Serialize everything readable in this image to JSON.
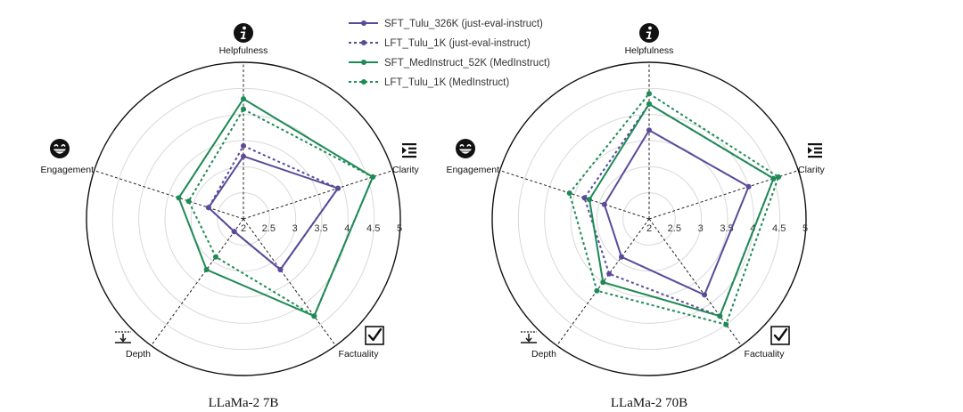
{
  "legend": [
    {
      "name": "SFT_Tulu_326K (just-eval-instruct)",
      "color": "#5b4a9a",
      "dash": "solid"
    },
    {
      "name": "LFT_Tulu_1K (just-eval-instruct)",
      "color": "#5b4a9a",
      "dash": "dotted"
    },
    {
      "name": "SFT_MedInstruct_52K (MedInstruct)",
      "color": "#1e8a55",
      "dash": "solid"
    },
    {
      "name": "LFT_Tulu_1K (MedInstruct)",
      "color": "#1e8a55",
      "dash": "dotted"
    }
  ],
  "icons": {
    "Helpfulness": "info-icon",
    "Clarity": "indent-list-icon",
    "Factuality": "checkbox-icon",
    "Depth": "depth-icon",
    "Engagement": "grin-face-icon"
  },
  "chart_data": [
    {
      "type": "radar",
      "title": "LLaMa-2 7B",
      "axes": [
        "Helpfulness",
        "Clarity",
        "Factuality",
        "Depth",
        "Engagement"
      ],
      "rlim": [
        2,
        5
      ],
      "ticks": [
        "2",
        "2.5",
        "3",
        "3.5",
        "4",
        "4.5",
        "5"
      ],
      "grid": true,
      "series": [
        {
          "name": "SFT_Tulu_326K (just-eval-instruct)",
          "values": [
            3.2,
            3.9,
            3.2,
            2.3,
            2.7
          ]
        },
        {
          "name": "LFT_Tulu_1K (just-eval-instruct)",
          "values": [
            3.4,
            3.9,
            3.2,
            2.3,
            2.7
          ]
        },
        {
          "name": "SFT_MedInstruct_52K (MedInstruct)",
          "values": [
            4.3,
            4.6,
            4.3,
            3.2,
            3.3
          ]
        },
        {
          "name": "LFT_Tulu_1K (MedInstruct)",
          "values": [
            4.1,
            4.6,
            4.3,
            2.9,
            3.1
          ]
        }
      ]
    },
    {
      "type": "radar",
      "title": "LLaMa-2 70B",
      "axes": [
        "Helpfulness",
        "Clarity",
        "Factuality",
        "Depth",
        "Engagement"
      ],
      "rlim": [
        2,
        5
      ],
      "ticks": [
        "2",
        "2.5",
        "3",
        "3.5",
        "4",
        "4.5",
        "5"
      ],
      "grid": true,
      "series": [
        {
          "name": "SFT_Tulu_326K (just-eval-instruct)",
          "values": [
            3.7,
            4.0,
            3.8,
            2.9,
            2.9
          ]
        },
        {
          "name": "LFT_Tulu_1K (just-eval-instruct)",
          "values": [
            4.2,
            4.5,
            4.3,
            3.3,
            3.3
          ]
        },
        {
          "name": "SFT_MedInstruct_52K (MedInstruct)",
          "values": [
            4.2,
            4.5,
            4.3,
            3.5,
            3.2
          ]
        },
        {
          "name": "LFT_Tulu_1K (MedInstruct)",
          "values": [
            4.4,
            4.6,
            4.5,
            3.7,
            3.6
          ]
        }
      ]
    }
  ]
}
